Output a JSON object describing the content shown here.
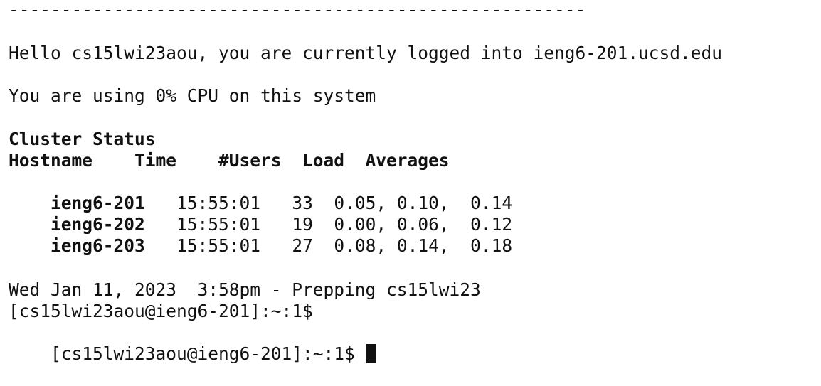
{
  "terminal": {
    "separator": "-------------------------------------------------------",
    "greeting": "Hello cs15lwi23aou, you are currently logged into ieng6-201.ucsd.edu",
    "cpu_usage": "You are using 0% CPU on this system",
    "cluster_status": {
      "title": "Cluster Status",
      "header": "Hostname    Time    #Users  Load  Averages",
      "rows": [
        {
          "hostname": "ieng6-201",
          "time": "15:55:01",
          "users": "33",
          "load1": "0.05,",
          "load5": "0.10,",
          "load15": "0.14"
        },
        {
          "hostname": "ieng6-202",
          "time": "15:55:01",
          "users": "19",
          "load1": "0.00,",
          "load5": "0.06,",
          "load15": "0.12"
        },
        {
          "hostname": "ieng6-203",
          "time": "15:55:01",
          "users": "27",
          "load1": "0.08,",
          "load5": "0.14,",
          "load15": "0.18"
        }
      ]
    },
    "login_banner": "Wed Jan 11, 2023  3:58pm - Prepping cs15lwi23",
    "prompts": [
      "[cs15lwi23aou@ieng6-201]:~:1$",
      "[cs15lwi23aou@ieng6-201]:~:1$ "
    ]
  }
}
